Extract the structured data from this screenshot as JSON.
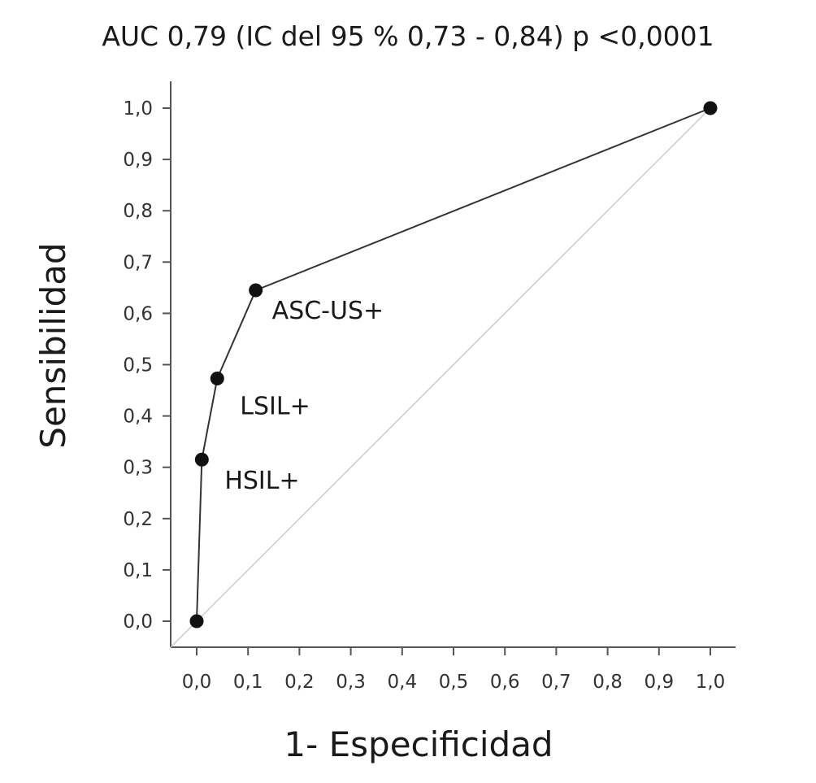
{
  "chart_data": {
    "type": "line",
    "title": "AUC 0,79 (IC del 95 % 0,73 - 0,84) p <0,0001",
    "xlabel": "1- Especificidad",
    "ylabel": "Sensibilidad",
    "xlim": [
      0,
      1
    ],
    "ylim": [
      0,
      1
    ],
    "x_ticks": [
      "0,0",
      "0,1",
      "0,2",
      "0,3",
      "0,4",
      "0,5",
      "0,6",
      "0,7",
      "0,8",
      "0,9",
      "1,0"
    ],
    "y_ticks": [
      "0,0",
      "0,1",
      "0,2",
      "0,3",
      "0,4",
      "0,5",
      "0,6",
      "0,7",
      "0,8",
      "0,9",
      "1,0"
    ],
    "grid": false,
    "series": [
      {
        "x": [
          0.0,
          0.01,
          0.04,
          0.115,
          1.0
        ],
        "y": [
          0.0,
          0.315,
          0.473,
          0.645,
          1.0
        ],
        "color": "#333333",
        "marker": "circle",
        "marker_color": "#111111"
      }
    ],
    "reference_line": {
      "x": [
        0,
        1
      ],
      "y": [
        0,
        1
      ],
      "color": "#cccccc"
    },
    "annotations": [
      {
        "text": "ASC-US+",
        "x": 0.115,
        "y": 0.645
      },
      {
        "text": "LSIL+",
        "x": 0.04,
        "y": 0.473
      },
      {
        "text": "HSIL+",
        "x": 0.01,
        "y": 0.315
      }
    ]
  }
}
